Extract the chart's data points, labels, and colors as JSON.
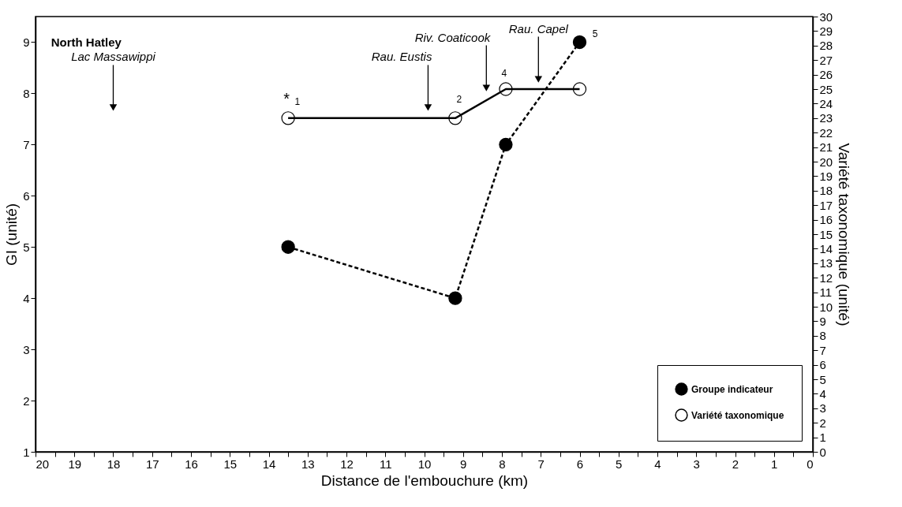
{
  "chart_data": {
    "type": "line",
    "xlabel": "Distance de l'embouchure (km)",
    "ylabel": "GI (unité)",
    "y2label": "Variété taxonomique (unité)",
    "x": [
      13.5,
      9.2,
      7.9,
      6
    ],
    "series": [
      {
        "name": "Groupe indicateur",
        "color": "#000000",
        "values": [
          5,
          4,
          7,
          9
        ],
        "line_style": "dashed"
      },
      {
        "name": "Variété taxonomique",
        "color": "#000000",
        "values": [
          23,
          23,
          25,
          25
        ],
        "axis": "y2",
        "line_style": "solid"
      }
    ],
    "xlim": [
      20,
      0
    ],
    "xticks": [
      20,
      {
        "value": 19.5,
        "label": null
      },
      19,
      {
        "value": 18.5,
        "label": null
      },
      18,
      {
        "value": 17.5,
        "label": null
      },
      17,
      {
        "value": 16.5,
        "label": null
      },
      16,
      {
        "value": 15.5,
        "label": null
      },
      15,
      {
        "value": 14.5,
        "label": null
      },
      14,
      {
        "value": 13.5,
        "label": null
      },
      13,
      {
        "value": 12.5,
        "label": null
      },
      12,
      {
        "value": 11.5,
        "label": null
      },
      11,
      {
        "value": 10.5,
        "label": null
      },
      10,
      {
        "value": 9.5,
        "label": null
      },
      9,
      {
        "value": 8.5,
        "label": null
      },
      8,
      {
        "value": 7.5,
        "label": null
      },
      7,
      {
        "value": 6.5,
        "label": null
      },
      6,
      {
        "value": 5.5,
        "label": null
      },
      5,
      {
        "value": 4.5,
        "label": null
      },
      4,
      {
        "value": 3.5,
        "label": null
      },
      3,
      {
        "value": 2.5,
        "label": null
      },
      2,
      {
        "value": 1.5,
        "label": null
      },
      1,
      {
        "value": 0.5,
        "label": null
      },
      0
    ],
    "ylim": [
      1,
      9.5
    ],
    "yticks": [
      1,
      2,
      3,
      4,
      5,
      6,
      7,
      8,
      9
    ],
    "y2lim": [
      0,
      30
    ],
    "y2ticks": [
      0,
      1,
      2,
      3,
      4,
      5,
      6,
      7,
      8,
      9,
      10,
      11,
      12,
      13,
      14,
      15,
      16,
      17,
      18,
      19,
      20,
      21,
      22,
      23,
      24,
      25,
      26,
      27,
      28,
      29,
      30
    ],
    "annotations": [
      "North Hatley",
      "Lac Massawippi",
      "Rau. Eustis",
      "Riv. Coaticook",
      "Rau. Capel",
      "*",
      "1",
      "2",
      "4",
      "5"
    ],
    "marker": "circle",
    "grid": false,
    "legend": "bottom right"
  }
}
